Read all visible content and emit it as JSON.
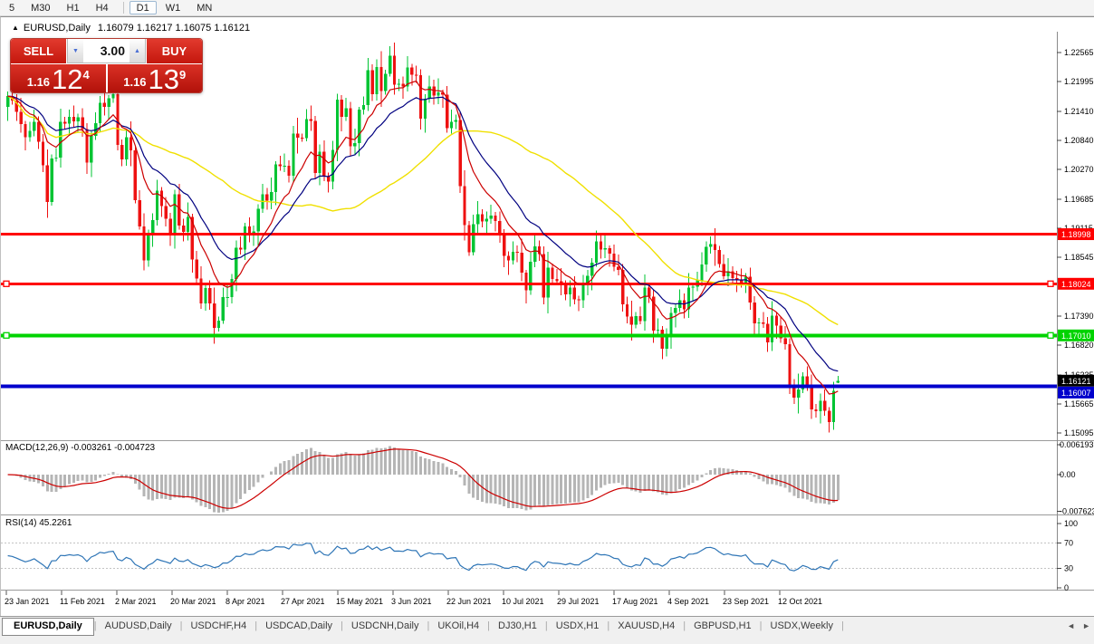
{
  "toolbar": {
    "timeframes": [
      "5",
      "M30",
      "H1",
      "H4",
      "D1",
      "W1",
      "MN"
    ],
    "active": "D1"
  },
  "chart_window": {
    "symbol": "EURUSD,Daily",
    "ohlc_text": "1.16079 1.16217 1.16075 1.16121"
  },
  "icons": {
    "collapse": "▲",
    "spinner_up": "▲",
    "spinner_down": "▼",
    "tab_prev": "◄",
    "tab_next": "►"
  },
  "one_click": {
    "sell_label": "SELL",
    "buy_label": "BUY",
    "volume": "3.00",
    "price_prefix": "1.16",
    "sell_big": "12",
    "sell_sup": "4",
    "buy_big": "13",
    "buy_sup": "9"
  },
  "panes": {
    "macd_label": "MACD(12,26,9) -0.003261 -0.004723",
    "rsi_label": "RSI(14) 45.2261"
  },
  "axis": {
    "price_ticks": [
      "1.22565",
      "1.21995",
      "1.21410",
      "1.20840",
      "1.20270",
      "1.19685",
      "1.19115",
      "1.18545",
      "1.17390",
      "1.16820",
      "1.16235",
      "1.15665",
      "1.15095"
    ],
    "macd_ticks": [
      "0.006193",
      "0.00",
      "-0.007623"
    ],
    "rsi_ticks": [
      "100",
      "70",
      "30",
      "0"
    ],
    "dates": [
      "23 Jan 2021",
      "11 Feb 2021",
      "2 Mar 2021",
      "20 Mar 2021",
      "8 Apr 2021",
      "27 Apr 2021",
      "15 May 2021",
      "3 Jun 2021",
      "22 Jun 2021",
      "10 Jul 2021",
      "29 Jul 2021",
      "17 Aug 2021",
      "4 Sep 2021",
      "23 Sep 2021",
      "12 Oct 2021"
    ]
  },
  "levels": [
    {
      "value": 1.18998,
      "label": "1.18998",
      "color": "#ff0000",
      "width": 3,
      "left_anchor": false,
      "right_anchor": false
    },
    {
      "value": 1.18024,
      "label": "1.18024",
      "color": "#ff0000",
      "width": 3,
      "left_anchor": true,
      "right_anchor": true
    },
    {
      "value": 1.1701,
      "label": "1.17010",
      "color": "#00d300",
      "width": 4,
      "left_anchor": true,
      "right_anchor": true
    },
    {
      "value": 1.16007,
      "label": "1.16007",
      "color": "#0000cc",
      "width": 4,
      "left_anchor": false,
      "right_anchor": false
    }
  ],
  "bid_marker": {
    "value": 1.16121,
    "label": "1.16121",
    "color": "#000000"
  },
  "tabs": {
    "active": "EURUSD,Daily",
    "items": [
      "EURUSD,Daily",
      "AUDUSD,Daily",
      "USDCHF,H4",
      "USDCAD,Daily",
      "USDCNH,Daily",
      "UKOil,H4",
      "DJ30,H1",
      "USDX,H1",
      "XAUUSD,H4",
      "GBPUSD,H1",
      "USDX,Weekly"
    ]
  },
  "chart_data": {
    "type": "candlestick",
    "symbol": "EURUSD",
    "timeframe": "Daily",
    "last_candle": {
      "open": 1.16079,
      "high": 1.16217,
      "low": 1.16075,
      "close": 1.16121
    },
    "first_open": 1.215,
    "price_range": [
      1.1495,
      1.2295
    ],
    "closes": [
      1.2171,
      1.2162,
      1.214,
      1.2116,
      1.209,
      1.2103,
      1.212,
      1.2081,
      1.2035,
      1.1963,
      1.2048,
      1.205,
      1.212,
      1.2117,
      1.213,
      1.2121,
      1.2129,
      1.2106,
      1.204,
      1.2093,
      1.2118,
      1.2158,
      1.215,
      1.2167,
      1.2175,
      1.2075,
      1.2047,
      1.209,
      1.2064,
      1.1967,
      1.1915,
      1.1848,
      1.1899,
      1.1927,
      1.1985,
      1.1955,
      1.193,
      1.1899,
      1.1978,
      1.1917,
      1.1904,
      1.1934,
      1.185,
      1.1813,
      1.1764,
      1.1794,
      1.1764,
      1.1716,
      1.173,
      1.1776,
      1.1776,
      1.1812,
      1.1873,
      1.187,
      1.1915,
      1.1899,
      1.1905,
      1.195,
      1.1978,
      1.1966,
      1.1983,
      1.2037,
      1.2033,
      1.2034,
      1.2015,
      1.2097,
      1.2089,
      1.2088,
      1.2126,
      1.2122,
      1.202,
      1.2062,
      1.2014,
      1.2003,
      1.2065,
      1.2164,
      1.213,
      1.2147,
      1.2072,
      1.2079,
      1.2144,
      1.2153,
      1.2222,
      1.2175,
      1.2228,
      1.2181,
      1.2215,
      1.225,
      1.2193,
      1.2195,
      1.219,
      1.2227,
      1.2213,
      1.2212,
      1.2127,
      1.2166,
      1.219,
      1.2172,
      1.2178,
      1.2174,
      1.2108,
      1.212,
      1.2124,
      1.1994,
      1.1918,
      1.1864,
      1.1919,
      1.1939,
      1.1925,
      1.193,
      1.1936,
      1.1926,
      1.1898,
      1.1857,
      1.1848,
      1.1865,
      1.1863,
      1.1824,
      1.179,
      1.1846,
      1.1876,
      1.1861,
      1.1775,
      1.1834,
      1.1812,
      1.1807,
      1.1799,
      1.1782,
      1.1795,
      1.1772,
      1.177,
      1.1802,
      1.1818,
      1.1844,
      1.1886,
      1.187,
      1.1872,
      1.1862,
      1.1836,
      1.183,
      1.1762,
      1.1738,
      1.1722,
      1.1739,
      1.1729,
      1.1795,
      1.1777,
      1.171,
      1.1712,
      1.1675,
      1.1697,
      1.1745,
      1.1755,
      1.177,
      1.1752,
      1.1795,
      1.1797,
      1.1809,
      1.184,
      1.1875,
      1.188,
      1.1869,
      1.1841,
      1.1817,
      1.1827,
      1.1814,
      1.181,
      1.1805,
      1.1816,
      1.1766,
      1.1725,
      1.1726,
      1.1724,
      1.1687,
      1.174,
      1.172,
      1.1695,
      1.1684,
      1.16,
      1.1579,
      1.1595,
      1.1621,
      1.1598,
      1.1556,
      1.1552,
      1.1573,
      1.1553,
      1.1531,
      1.1592,
      1.16121
    ],
    "wick_pattern": [
      0.0009,
      0.0021,
      0.0013,
      0.0028,
      0.0006,
      0.0017,
      0.0024,
      0.0011,
      0.0015,
      0.0031,
      0.0008,
      0.0019,
      0.0026,
      0.001,
      0.0014,
      0.0022,
      0.0007,
      0.0018,
      0.0012
    ],
    "colors": {
      "up": "#00c433",
      "down": "#ee1111",
      "ma_fast": "#cc0000",
      "ma_mid": "#000080",
      "ma_slow": "#f0e000",
      "macd_hist": "#b5b5b5",
      "macd_signal": "#cc0000",
      "rsi_line": "#2e75b6"
    },
    "indicators": {
      "macd": {
        "params": [
          12,
          26,
          9
        ],
        "display_values": [
          -0.003261,
          -0.004723
        ],
        "axis_range": [
          -0.007623,
          0.006193
        ]
      },
      "rsi": {
        "period": 14,
        "value": 45.2261,
        "levels": [
          30,
          70
        ],
        "axis_range": [
          0,
          100
        ]
      },
      "moving_averages": [
        {
          "type": "ema",
          "period": 10,
          "color": "#cc0000"
        },
        {
          "type": "ema",
          "period": 20,
          "color": "#000080"
        },
        {
          "type": "sma",
          "period": 50,
          "color": "#f0e000"
        }
      ]
    }
  }
}
